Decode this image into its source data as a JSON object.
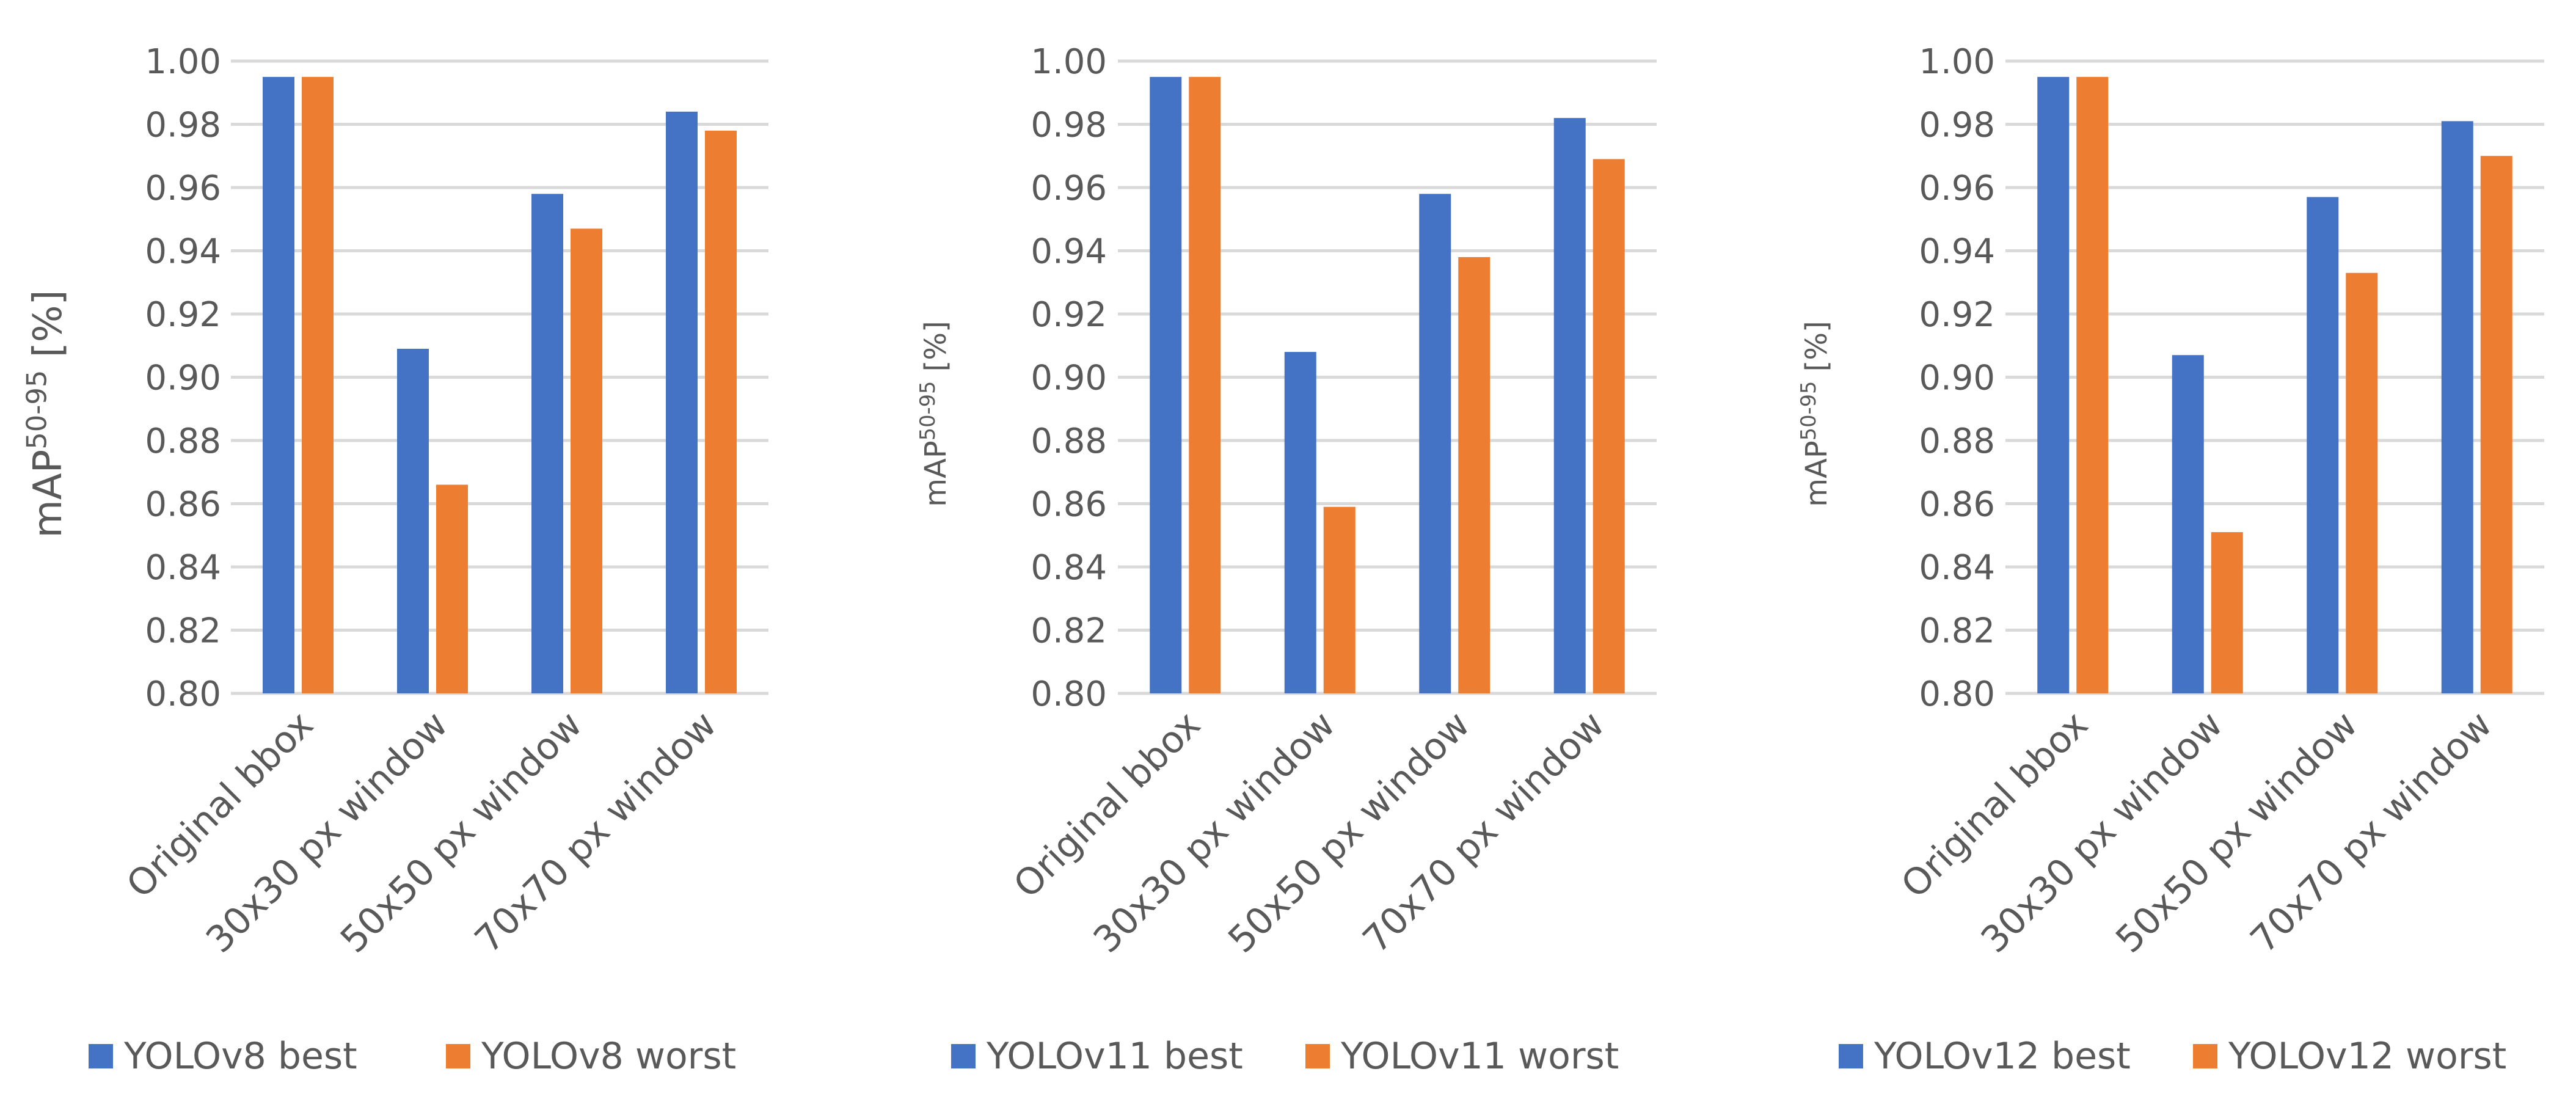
{
  "chart_data": [
    {
      "type": "bar",
      "title": "",
      "xlabel": "",
      "ylabel": "mAP",
      "ylabel_superscript": "50-95",
      "ylabel_unit": "[%]",
      "ylim": [
        0.8,
        1.0
      ],
      "ytick_step": 0.02,
      "grid": true,
      "legend_position": "bottom",
      "categories": [
        "Original bbox",
        "30x30 px window",
        "50x50 px window",
        "70x70 px window"
      ],
      "series": [
        {
          "name": "YOLOv8 best",
          "color": "#4472c4",
          "values": [
            0.995,
            0.909,
            0.958,
            0.984
          ]
        },
        {
          "name": "YOLOv8 worst",
          "color": "#ed7d31",
          "values": [
            0.995,
            0.866,
            0.947,
            0.978
          ]
        }
      ]
    },
    {
      "type": "bar",
      "title": "",
      "xlabel": "",
      "ylabel": "mAP",
      "ylabel_superscript": "50-95",
      "ylabel_unit": "[%]",
      "ylim": [
        0.8,
        1.0
      ],
      "ytick_step": 0.02,
      "grid": true,
      "legend_position": "bottom",
      "categories": [
        "Original bbox",
        "30x30 px window",
        "50x50 px window",
        "70x70 px window"
      ],
      "series": [
        {
          "name": "YOLOv11 best",
          "color": "#4472c4",
          "values": [
            0.995,
            0.908,
            0.958,
            0.982
          ]
        },
        {
          "name": "YOLOv11 worst",
          "color": "#ed7d31",
          "values": [
            0.995,
            0.859,
            0.938,
            0.969
          ]
        }
      ]
    },
    {
      "type": "bar",
      "title": "",
      "xlabel": "",
      "ylabel": "mAP",
      "ylabel_superscript": "50-95",
      "ylabel_unit": "[%]",
      "ylim": [
        0.8,
        1.0
      ],
      "ytick_step": 0.02,
      "grid": true,
      "legend_position": "bottom",
      "categories": [
        "Original bbox",
        "30x30 px window",
        "50x50 px window",
        "70x70 px window"
      ],
      "series": [
        {
          "name": "YOLOv12 best",
          "color": "#4472c4",
          "values": [
            0.995,
            0.907,
            0.957,
            0.981
          ]
        },
        {
          "name": "YOLOv12 worst",
          "color": "#ed7d31",
          "values": [
            0.995,
            0.851,
            0.933,
            0.97
          ]
        }
      ]
    }
  ]
}
